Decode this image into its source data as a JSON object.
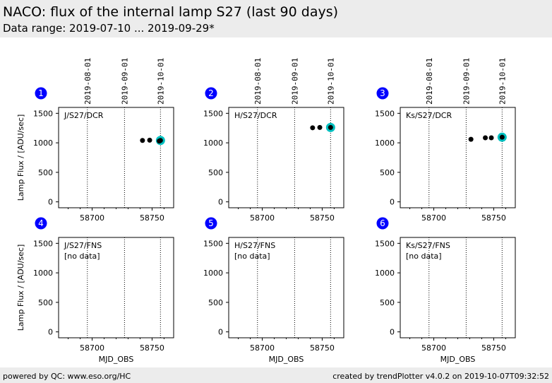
{
  "header": {
    "title": "NACO: flux of the internal lamp S27 (last 90 days)",
    "subtitle": "Data range: 2019-07-10 ... 2019-09-29*"
  },
  "footer": {
    "left": "powered by QC: www.eso.org/HC",
    "right": "created by trendPlotter v4.0.2 on 2019-10-07T09:32:52"
  },
  "colors": {
    "point": "#000000",
    "highlight": "#00c0c0",
    "badge": "#0000ff"
  },
  "chart_data": {
    "type": "scatter",
    "xlabel": "MJD_OBS",
    "ylabel": "Lamp Flux / [ADU/sec]",
    "xlim": [
      58672,
      58768
    ],
    "ylim": [
      -100,
      1600
    ],
    "xticks": [
      58700,
      58750
    ],
    "yticks": [
      0,
      500,
      1000,
      1500
    ],
    "date_lines": [
      {
        "mjd": 58696,
        "label": "2019-08-01"
      },
      {
        "mjd": 58727,
        "label": "2019-09-01"
      },
      {
        "mjd": 58757,
        "label": "2019-10-01"
      }
    ],
    "panels": [
      {
        "num": "1",
        "label": "J/S27/DCR",
        "nodata": "",
        "points": [
          [
            58742,
            1040
          ],
          [
            58748,
            1045
          ],
          [
            58756,
            1030
          ],
          [
            58757,
            1040
          ]
        ],
        "highlight": [
          58757,
          1040
        ]
      },
      {
        "num": "2",
        "label": "H/S27/DCR",
        "nodata": "",
        "points": [
          [
            58742,
            1255
          ],
          [
            58748,
            1260
          ],
          [
            58757,
            1260
          ]
        ],
        "highlight": [
          58757,
          1260
        ]
      },
      {
        "num": "3",
        "label": "Ks/S27/DCR",
        "nodata": "",
        "points": [
          [
            58731,
            1060
          ],
          [
            58743,
            1085
          ],
          [
            58748,
            1085
          ],
          [
            58757,
            1095
          ]
        ],
        "highlight": [
          58757,
          1095
        ]
      },
      {
        "num": "4",
        "label": "J/S27/FNS",
        "nodata": "[no data]",
        "points": [],
        "highlight": null
      },
      {
        "num": "5",
        "label": "H/S27/FNS",
        "nodata": "[no data]",
        "points": [],
        "highlight": null
      },
      {
        "num": "6",
        "label": "Ks/S27/FNS",
        "nodata": "[no data]",
        "points": [],
        "highlight": null
      }
    ]
  }
}
